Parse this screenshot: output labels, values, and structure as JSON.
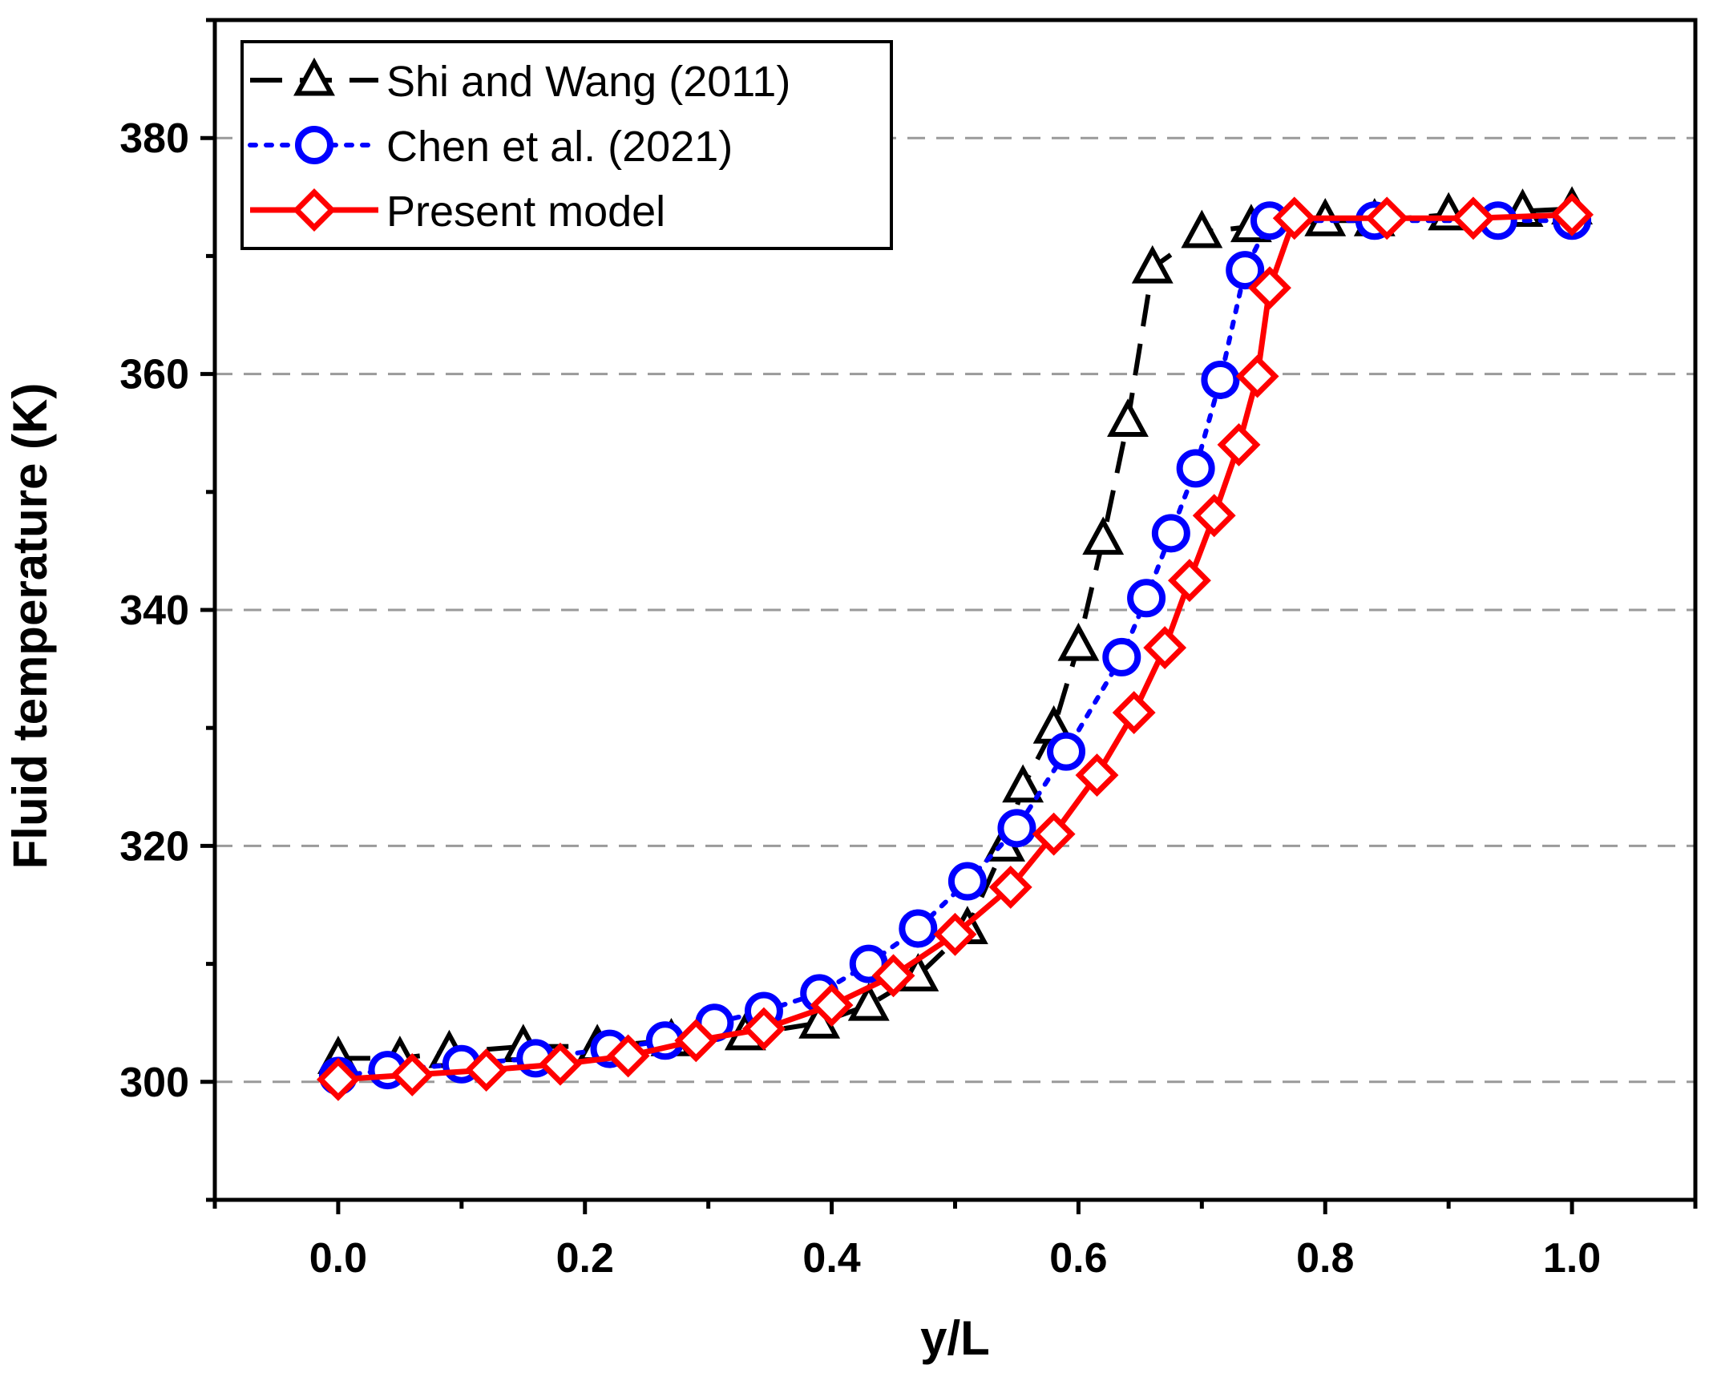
{
  "chart_data": {
    "type": "line",
    "title": "",
    "xlabel": "y/L",
    "ylabel": "Fluid temperature (K)",
    "xlim": [
      -0.1,
      1.1
    ],
    "ylim": [
      290,
      390
    ],
    "x_ticks": [
      0.0,
      0.2,
      0.4,
      0.6,
      0.8,
      1.0
    ],
    "x_tick_labels": [
      "0.0",
      "0.2",
      "0.4",
      "0.6",
      "0.8",
      "1.0"
    ],
    "y_ticks": [
      300,
      320,
      340,
      360,
      380
    ],
    "y_tick_labels": [
      "300",
      "320",
      "340",
      "360",
      "380"
    ],
    "grid": "horizontal dashed at major y ticks",
    "legend_position": "top-left",
    "series": [
      {
        "name": "Shi and Wang (2011)",
        "color": "#000000",
        "line_style": "dashed",
        "marker": "triangle",
        "x": [
          0.0,
          0.05,
          0.09,
          0.15,
          0.21,
          0.27,
          0.33,
          0.39,
          0.43,
          0.47,
          0.51,
          0.54,
          0.555,
          0.58,
          0.6,
          0.62,
          0.64,
          0.66,
          0.7,
          0.74,
          0.8,
          0.84,
          0.9,
          0.96,
          1.0
        ],
        "y": [
          302,
          302,
          302.5,
          303,
          303,
          303.5,
          304,
          305,
          306.5,
          309,
          313,
          320,
          325,
          330,
          337,
          346,
          356,
          369,
          372,
          372.5,
          373,
          373,
          373.5,
          373.8,
          374
        ]
      },
      {
        "name": "Chen et al. (2021)",
        "color": "#0000ff",
        "line_style": "dotted",
        "marker": "circle",
        "x": [
          0.0,
          0.04,
          0.1,
          0.16,
          0.22,
          0.265,
          0.305,
          0.345,
          0.39,
          0.43,
          0.47,
          0.51,
          0.55,
          0.59,
          0.635,
          0.655,
          0.675,
          0.695,
          0.715,
          0.735,
          0.755,
          0.84,
          0.94,
          1.0
        ],
        "y": [
          300.5,
          301,
          301.5,
          302,
          302.8,
          303.5,
          305,
          306,
          307.5,
          310,
          313,
          317,
          321.5,
          328,
          336,
          341,
          346.5,
          352,
          359.5,
          368.8,
          373,
          373,
          373,
          373
        ]
      },
      {
        "name": "Present model",
        "color": "#ff0000",
        "line_style": "solid",
        "marker": "diamond",
        "x": [
          0.0,
          0.06,
          0.12,
          0.18,
          0.235,
          0.29,
          0.345,
          0.4,
          0.45,
          0.5,
          0.545,
          0.58,
          0.615,
          0.645,
          0.67,
          0.69,
          0.71,
          0.73,
          0.745,
          0.755,
          0.775,
          0.85,
          0.92,
          1.0
        ],
        "y": [
          300.2,
          300.6,
          301,
          301.5,
          302.2,
          303.5,
          304.5,
          306.5,
          309,
          312.5,
          316.5,
          321,
          326,
          331.3,
          336.8,
          342.5,
          348,
          354,
          359.8,
          367.3,
          373.2,
          373.2,
          373.2,
          373.5
        ]
      }
    ]
  }
}
